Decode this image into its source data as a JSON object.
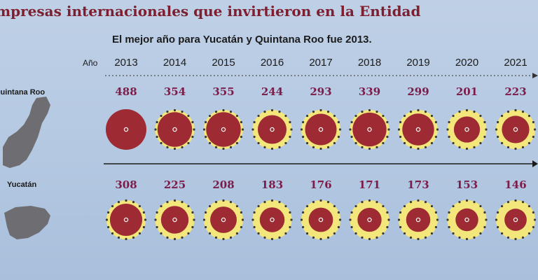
{
  "title": "mpresas internacionales que invirtieron en la Entidad",
  "subtitle": "El mejor año para Yucatán y Quintana Roo fue 2013.",
  "year_axis_label": "Año",
  "colors": {
    "title": "#7d1f2f",
    "value_text": "#7a1d4a",
    "disc": "#9e2b33",
    "halo": "#f3e67a",
    "halo_dots": "#3a3a3a",
    "background": "#b9cce4",
    "map_fill": "#6e6e72"
  },
  "chart_data": {
    "type": "bubble",
    "title": "mpresas internacionales que invirtieron en la Entidad",
    "subtitle": "El mejor año para Yucatán y Quintana Roo fue 2013.",
    "x": [
      2013,
      2014,
      2015,
      2016,
      2017,
      2018,
      2019,
      2020,
      2021
    ],
    "xlabel": "Año",
    "series": [
      {
        "name": "Quintana Roo",
        "values": [
          488,
          354,
          355,
          244,
          293,
          339,
          299,
          201,
          223
        ]
      },
      {
        "name": "Yucatán",
        "values": [
          308,
          225,
          208,
          183,
          176,
          171,
          173,
          153,
          146
        ]
      }
    ]
  }
}
